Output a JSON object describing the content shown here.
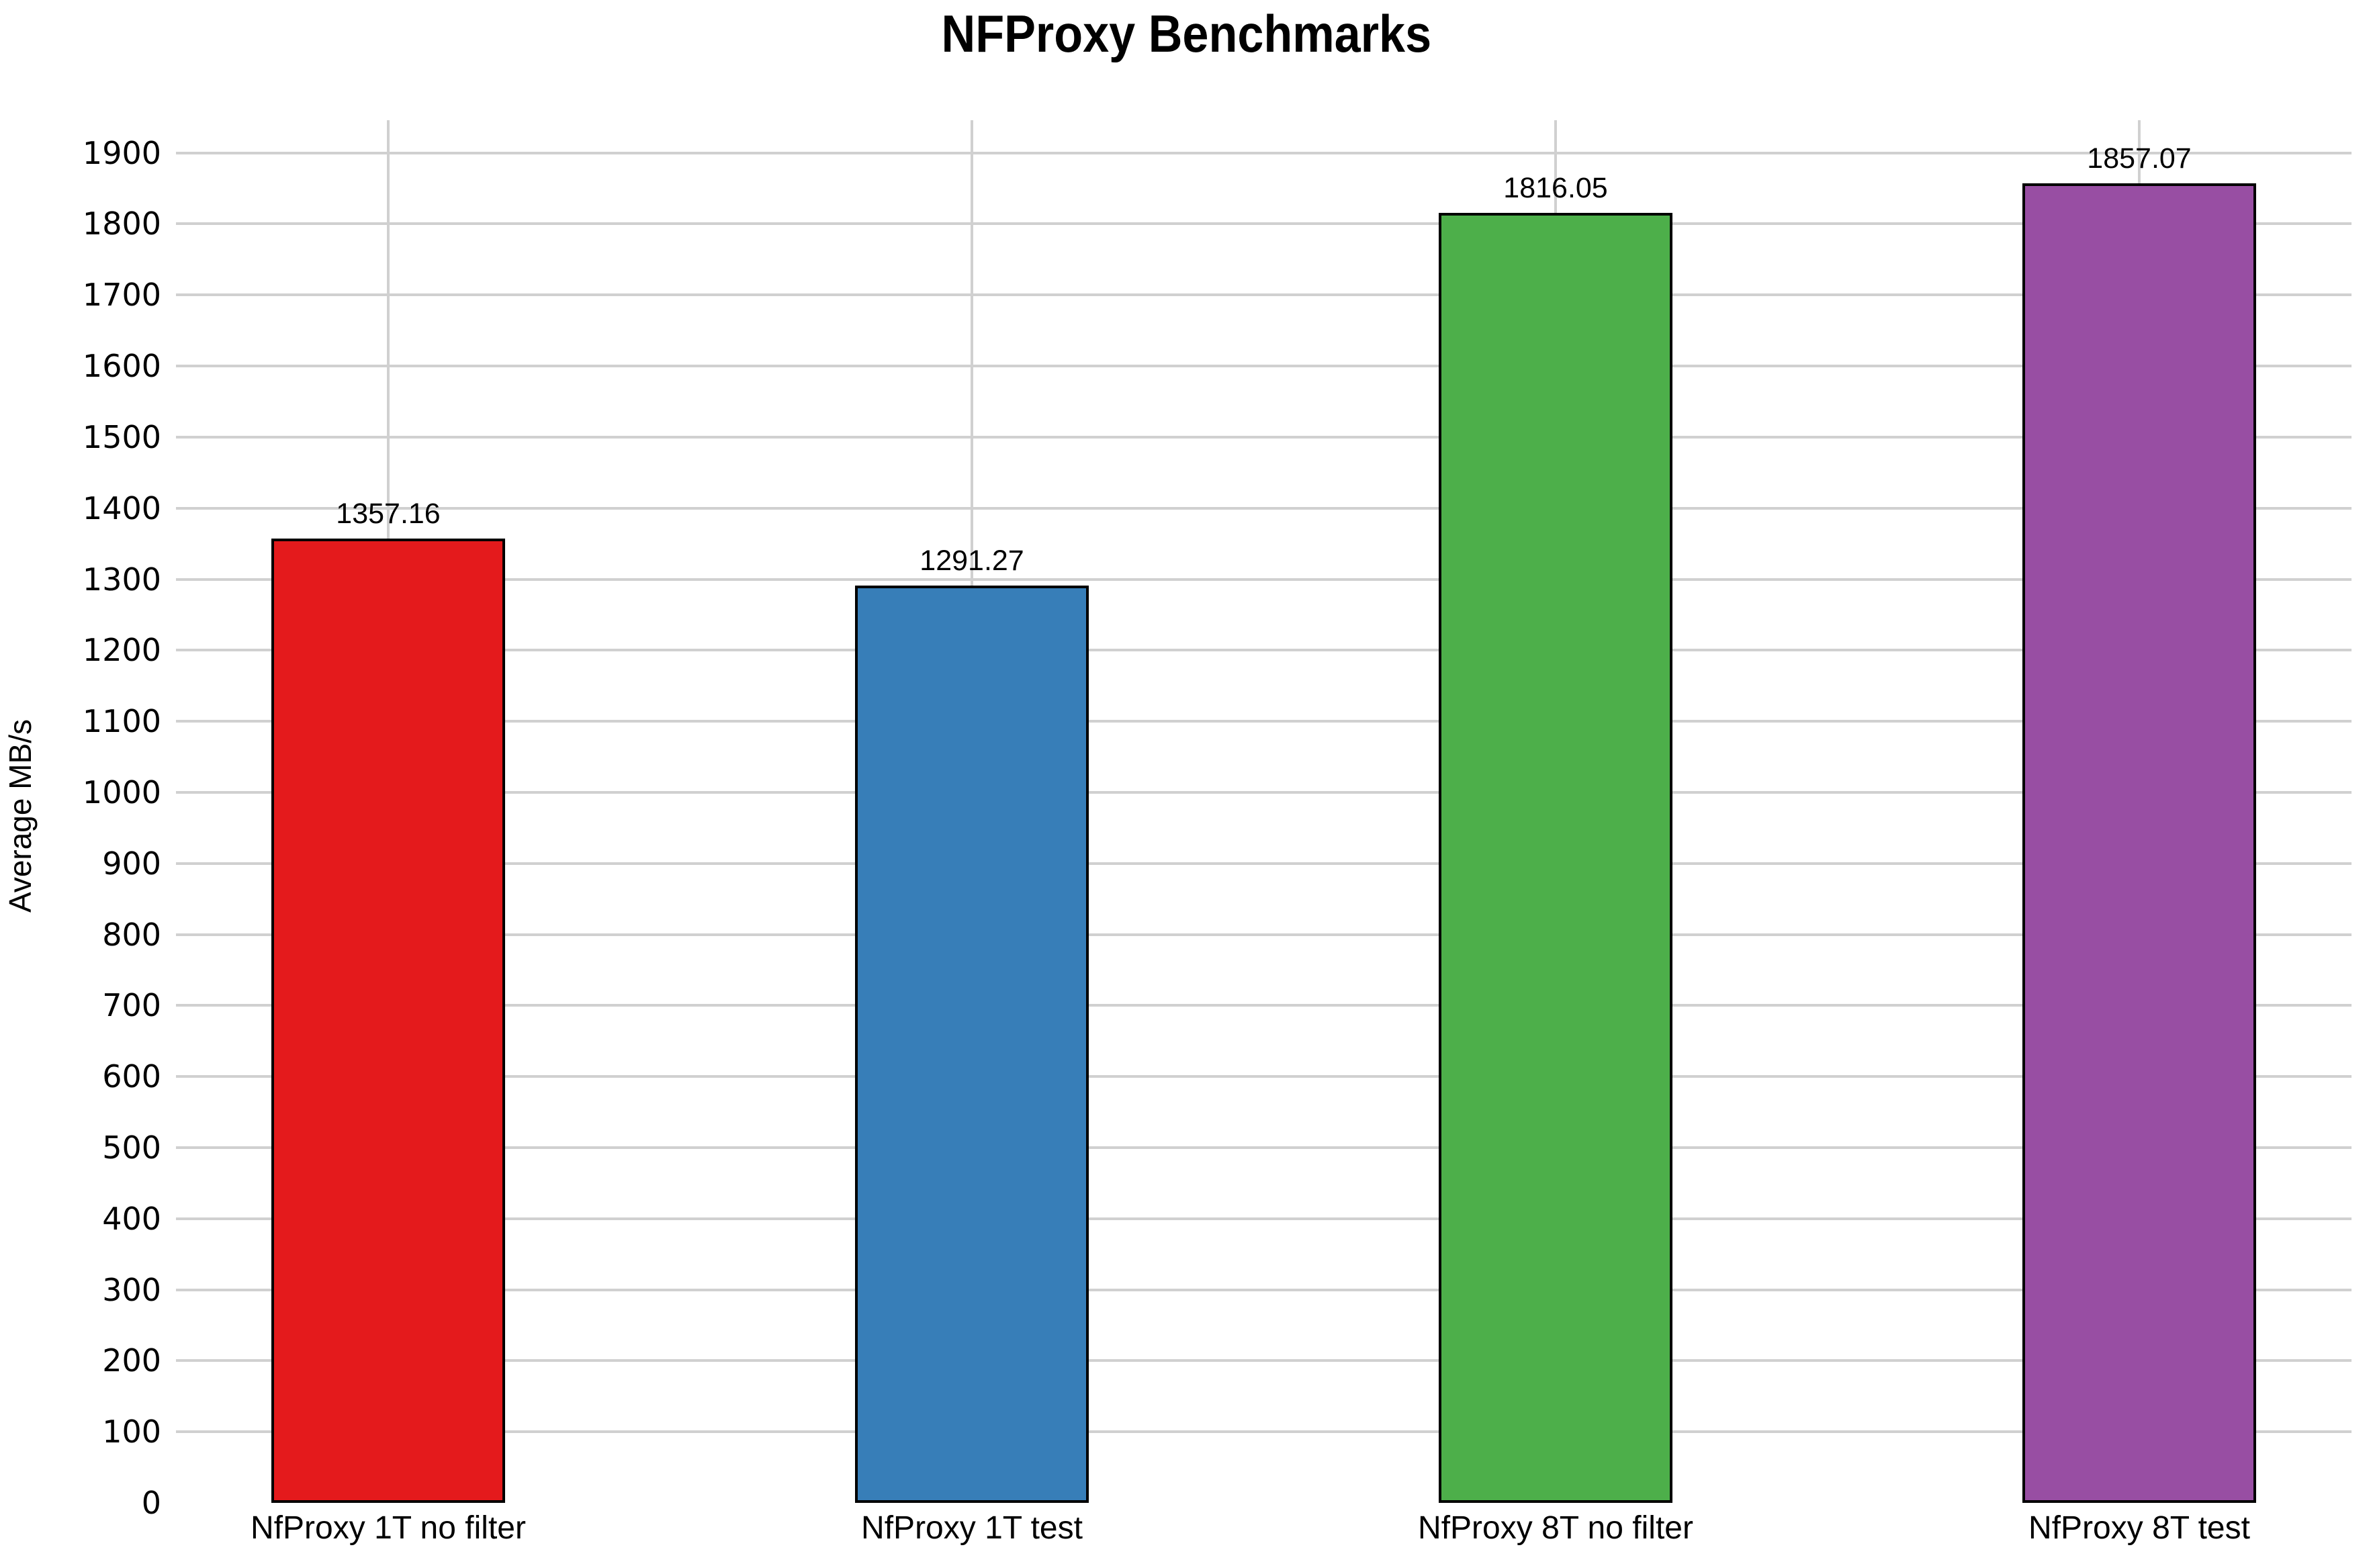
{
  "title": "NFProxy Benchmarks",
  "y_axis_title": "Average MB/s",
  "chart_data": {
    "type": "bar",
    "title": "NFProxy Benchmarks",
    "xlabel": "",
    "ylabel": "Average MB/s",
    "categories": [
      "NfProxy 1T no filter",
      "NfProxy 1T test",
      "NfProxy 8T no filter",
      "NfProxy 8T test"
    ],
    "values": [
      1357.16,
      1291.27,
      1816.05,
      1857.07
    ],
    "value_labels": [
      "1357.16",
      "1291.27",
      "1816.05",
      "1857.07"
    ],
    "bar_colors": [
      "#e41a1c",
      "#377eb8",
      "#4daf4a",
      "#984ea3"
    ],
    "bar_edge_color": "#000000",
    "ylim": [
      0,
      1946
    ],
    "yticks": [
      0,
      100,
      200,
      300,
      400,
      500,
      600,
      700,
      800,
      900,
      1000,
      1100,
      1200,
      1300,
      1400,
      1500,
      1600,
      1700,
      1800,
      1900
    ],
    "grid": true,
    "grid_color": "#d0d0d0",
    "legend_position": "none"
  }
}
